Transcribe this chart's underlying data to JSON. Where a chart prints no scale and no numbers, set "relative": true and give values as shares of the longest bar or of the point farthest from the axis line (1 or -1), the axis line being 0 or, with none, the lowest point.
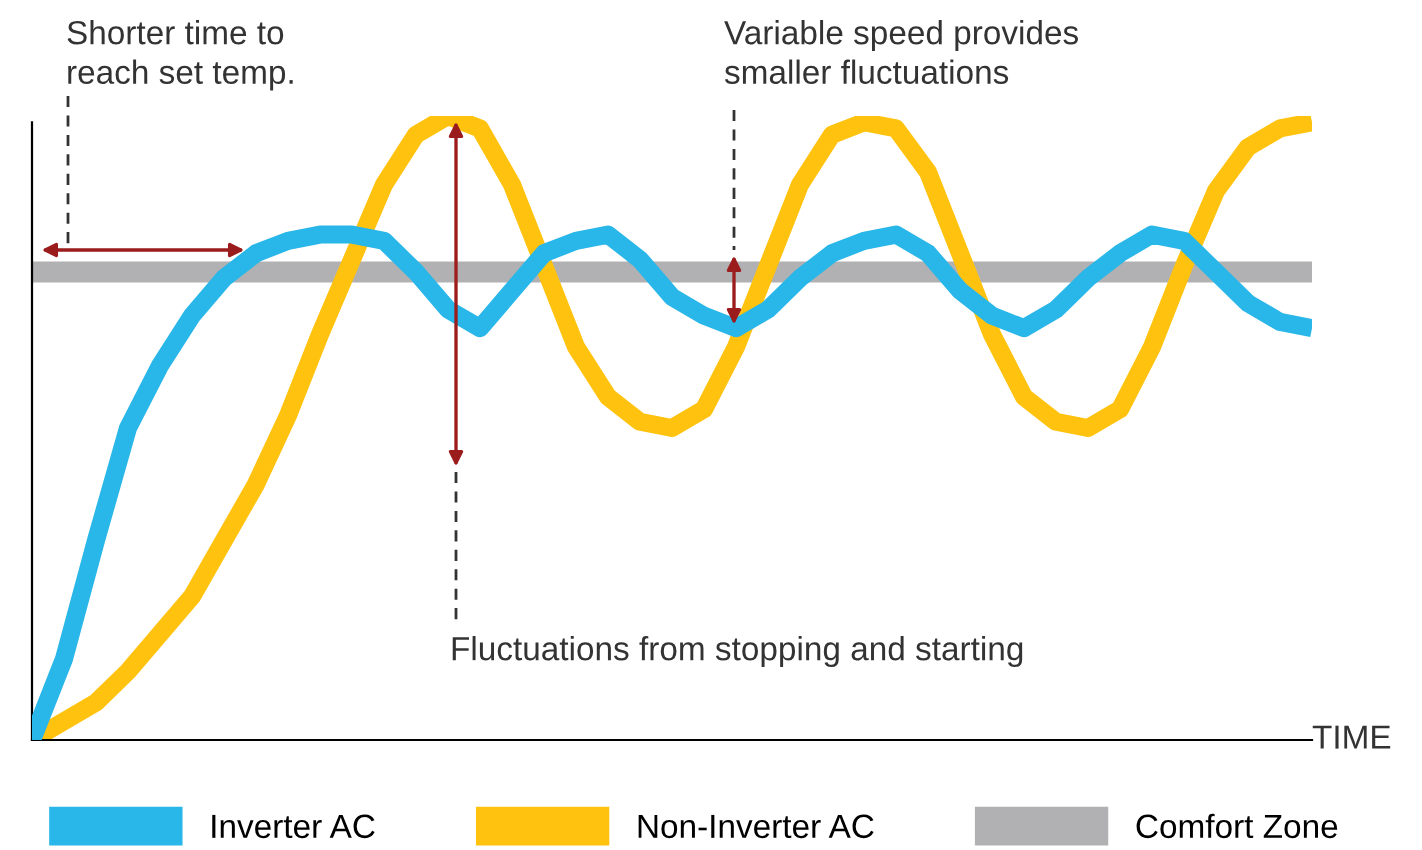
{
  "chart_data": {
    "type": "line",
    "relative": true,
    "xlabel": "TIME",
    "legend": "bottom",
    "categories": [
      null,
      null,
      null,
      null,
      null,
      null,
      null,
      null,
      null,
      null,
      null,
      null,
      null,
      null,
      null,
      null,
      null,
      null,
      null,
      null,
      null,
      null,
      null,
      null,
      null,
      null,
      null,
      null,
      null,
      null,
      null,
      null,
      null,
      null,
      null,
      null,
      null,
      null,
      null,
      null,
      null
    ],
    "series": [
      {
        "name": "Inverter AC",
        "color": "#29b6e8",
        "values": [
          0,
          0.13,
          0.32,
          0.5,
          0.6,
          0.68,
          0.74,
          0.78,
          0.8,
          0.81,
          0.81,
          0.8,
          0.75,
          0.69,
          0.66,
          0.72,
          0.78,
          0.8,
          0.81,
          0.77,
          0.71,
          0.68,
          0.66,
          0.69,
          0.74,
          0.78,
          0.8,
          0.81,
          0.78,
          0.72,
          0.68,
          0.66,
          0.69,
          0.74,
          0.78,
          0.81,
          0.8,
          0.75,
          0.7,
          0.67,
          0.66
        ]
      },
      {
        "name": "Non-Inverter AC",
        "color": "#ffc20e",
        "values": [
          0,
          0.03,
          0.06,
          0.11,
          0.17,
          0.23,
          0.32,
          0.41,
          0.52,
          0.65,
          0.77,
          0.89,
          0.97,
          1.0,
          0.98,
          0.89,
          0.76,
          0.63,
          0.55,
          0.51,
          0.5,
          0.53,
          0.63,
          0.76,
          0.89,
          0.97,
          0.99,
          0.98,
          0.91,
          0.78,
          0.65,
          0.55,
          0.51,
          0.5,
          0.53,
          0.63,
          0.76,
          0.88,
          0.95,
          0.98,
          0.99
        ]
      },
      {
        "name": "Comfort Zone",
        "color": "#b1b1b3",
        "values": [
          0.75,
          0.75,
          0.75,
          0.75,
          0.75,
          0.75,
          0.75,
          0.75,
          0.75,
          0.75,
          0.75,
          0.75,
          0.75,
          0.75,
          0.75,
          0.75,
          0.75,
          0.75,
          0.75,
          0.75,
          0.75,
          0.75,
          0.75,
          0.75,
          0.75,
          0.75,
          0.75,
          0.75,
          0.75,
          0.75,
          0.75,
          0.75,
          0.75,
          0.75,
          0.75,
          0.75,
          0.75,
          0.75,
          0.75,
          0.75,
          0.75
        ]
      }
    ],
    "annotations": [
      "Shorter time to\nreach set temp.",
      "Variable speed provides\nsmaller fluctuations",
      "Fluctuations from stopping and starting"
    ]
  }
}
